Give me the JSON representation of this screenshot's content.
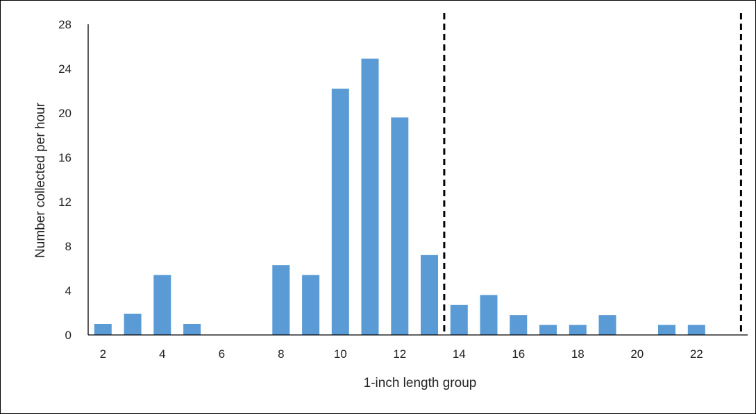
{
  "chart_data": {
    "type": "bar",
    "x": [
      2,
      3,
      4,
      5,
      6,
      7,
      8,
      9,
      10,
      11,
      12,
      13,
      14,
      15,
      16,
      17,
      18,
      19,
      20,
      21,
      22,
      23
    ],
    "values": [
      1,
      1.9,
      5.4,
      1,
      0,
      0,
      6.3,
      5.4,
      22.2,
      24.9,
      19.6,
      7.2,
      2.7,
      3.6,
      1.8,
      0.9,
      0.9,
      1.8,
      0,
      0.9,
      0.9,
      0
    ],
    "x_tick_labels": [
      "2",
      "4",
      "6",
      "8",
      "10",
      "12",
      "14",
      "16",
      "18",
      "20",
      "22"
    ],
    "x_ticks": [
      2,
      4,
      6,
      8,
      10,
      12,
      14,
      16,
      18,
      20,
      22
    ],
    "y_ticks": [
      0,
      4,
      8,
      12,
      16,
      20,
      24,
      28
    ],
    "ylim": [
      0,
      28
    ],
    "xlabel": "1-inch length group",
    "ylabel": "Number collected per hour",
    "bar_color": "#5b9bd5",
    "reference_lines": [
      13.5,
      23.5
    ],
    "reference_line_style": "dashed",
    "grid": false
  }
}
